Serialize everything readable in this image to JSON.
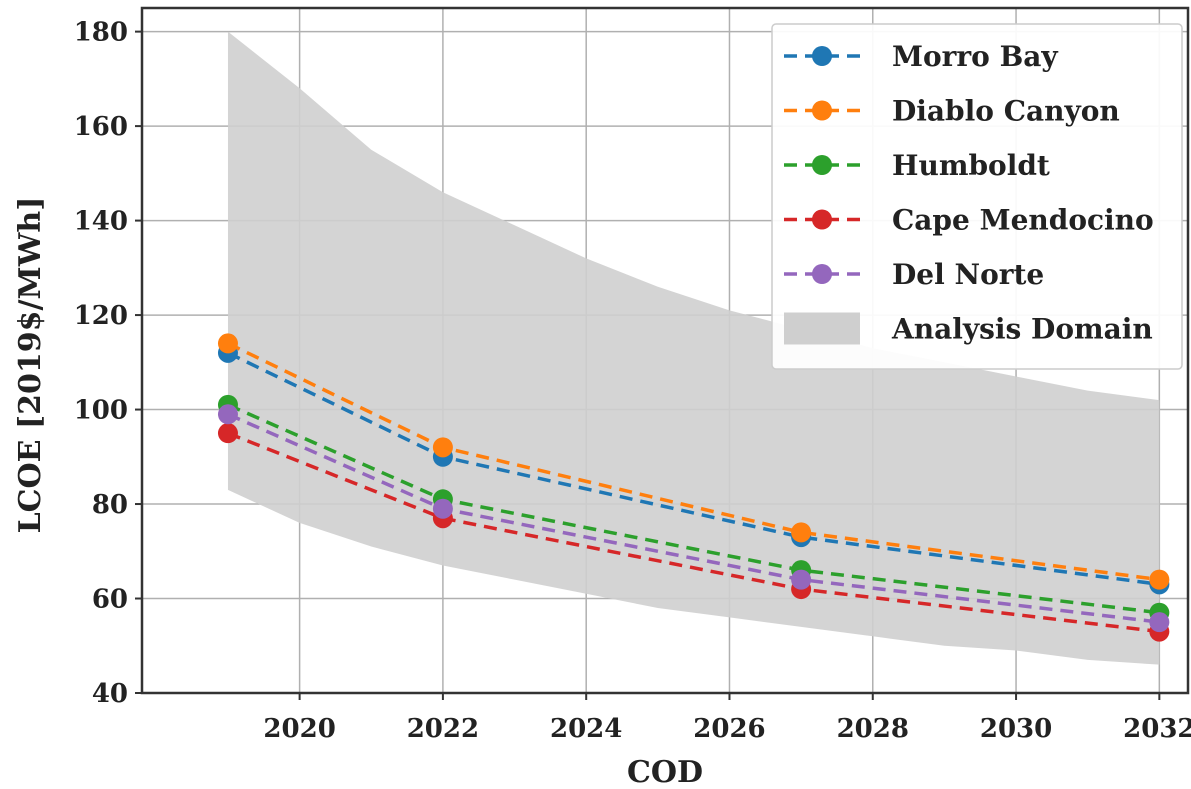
{
  "chart_data": {
    "type": "line",
    "xlabel": "COD",
    "ylabel": "LCOE [2019$/MWh]",
    "xlim": [
      2017.8,
      2032.4
    ],
    "ylim": [
      40,
      185
    ],
    "x_ticks": [
      2020,
      2022,
      2024,
      2026,
      2028,
      2030,
      2032
    ],
    "y_ticks": [
      40,
      60,
      80,
      100,
      120,
      140,
      160,
      180
    ],
    "grid": true,
    "legend_position": "top-right",
    "x": [
      2019,
      2022,
      2027,
      2032
    ],
    "series": [
      {
        "name": "Morro Bay",
        "color": "#1f77b4",
        "values": [
          112,
          90,
          73,
          63
        ]
      },
      {
        "name": "Diablo Canyon",
        "color": "#ff7f0e",
        "values": [
          114,
          92,
          74,
          64
        ]
      },
      {
        "name": "Humboldt",
        "color": "#2ca02c",
        "values": [
          101,
          81,
          66,
          57
        ]
      },
      {
        "name": "Cape Mendocino",
        "color": "#d62728",
        "values": [
          95,
          77,
          62,
          53
        ]
      },
      {
        "name": "Del Norte",
        "color": "#9467bd",
        "values": [
          99,
          79,
          64,
          55
        ]
      }
    ],
    "band": {
      "name": "Analysis Domain",
      "color": "#cfcfcf",
      "x": [
        2019,
        2020,
        2021,
        2022,
        2023,
        2024,
        2025,
        2026,
        2027,
        2028,
        2029,
        2030,
        2031,
        2032
      ],
      "upper": [
        180,
        168,
        155,
        146,
        139,
        132,
        126,
        121,
        117,
        113,
        110,
        107,
        104,
        102
      ],
      "lower": [
        83,
        76,
        71,
        67,
        64,
        61,
        58,
        56,
        54,
        52,
        50,
        49,
        47,
        46
      ]
    }
  }
}
